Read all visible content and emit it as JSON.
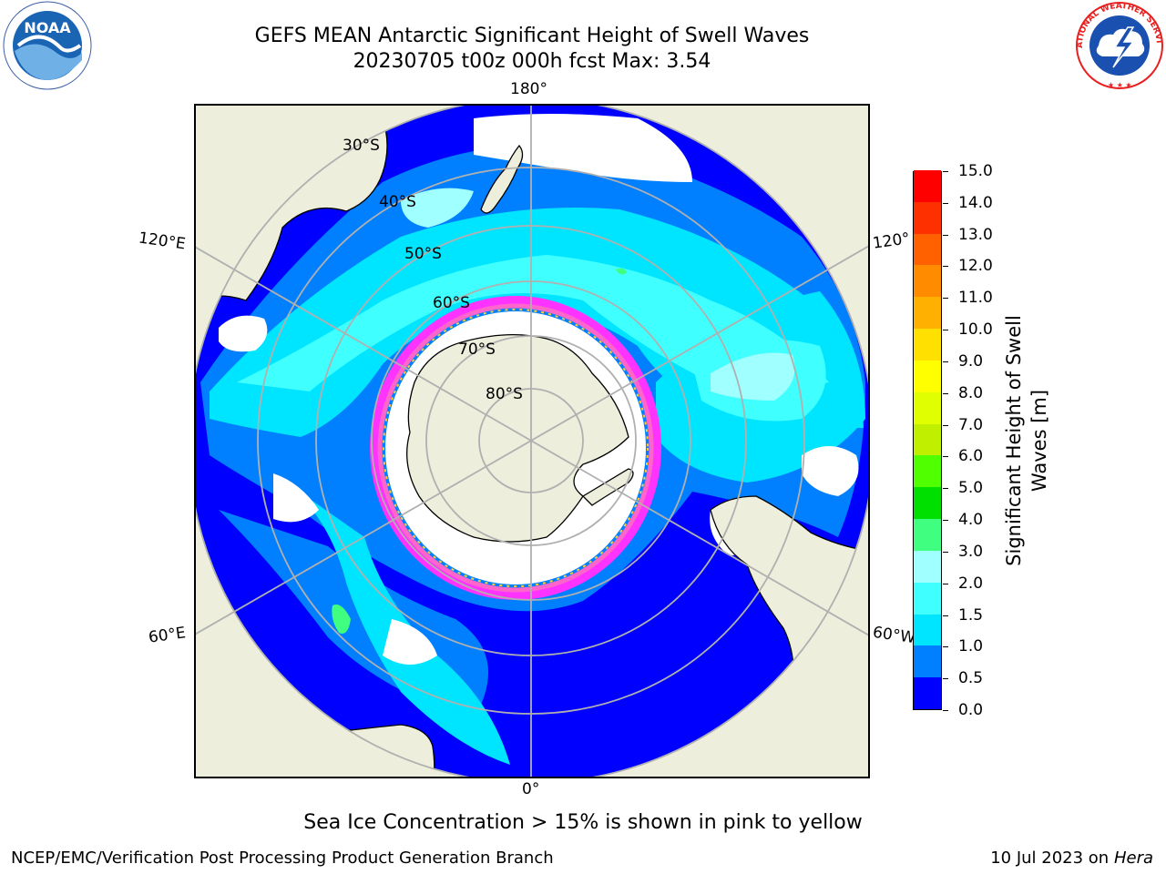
{
  "header": {
    "title": "GEFS MEAN Antarctic Significant Height of Swell Waves",
    "subtitle": "20230705 t00z 000h fcst   Max: 3.54"
  },
  "logos": {
    "left": {
      "icon": "noaa-logo",
      "text": "NOAA"
    },
    "right": {
      "icon": "national-weather-service-logo",
      "text": "NATIONAL WEATHER SERVICE"
    }
  },
  "map": {
    "projection": "south-polar-stereographic",
    "longitude_labels": {
      "top": "180°",
      "bottom": "0°",
      "upper_left": "120°E",
      "upper_right": "120°",
      "lower_left": "60°E",
      "lower_right": "60°W"
    },
    "latitude_labels": [
      "30°S",
      "40°S",
      "50°S",
      "60°S",
      "70°S",
      "80°S"
    ],
    "colors": {
      "land": "#eeeedd",
      "ocean_no_data": "#ffffff",
      "graticule": "#b0b0b0",
      "sea_ice_edge": [
        "#ff33ff",
        "#ff66cc",
        "#ffcc33"
      ]
    }
  },
  "colorbar": {
    "title_line1": "Significant Height of Swell",
    "title_line2": "Waves [m]",
    "ticks": [
      "0.0",
      "0.5",
      "1.0",
      "1.5",
      "2.0",
      "3.0",
      "4.0",
      "5.0",
      "6.0",
      "7.0",
      "8.0",
      "9.0",
      "10.0",
      "11.0",
      "12.0",
      "13.0",
      "14.0",
      "15.0"
    ],
    "colors": [
      "#0000ff",
      "#0080ff",
      "#00e5ff",
      "#40ffff",
      "#a0ffff",
      "#40ff80",
      "#00e000",
      "#50ff00",
      "#c0f000",
      "#e0ff00",
      "#ffff00",
      "#ffe000",
      "#ffb000",
      "#ff8c00",
      "#ff6000",
      "#ff3000",
      "#ff0000"
    ]
  },
  "footnote": "Sea Ice Concentration > 15% is shown in pink to yellow",
  "footer": {
    "credit": "NCEP/EMC/Verification Post Processing Product Generation Branch",
    "date_prefix": "10 Jul 2023 on ",
    "machine": "Hera"
  }
}
